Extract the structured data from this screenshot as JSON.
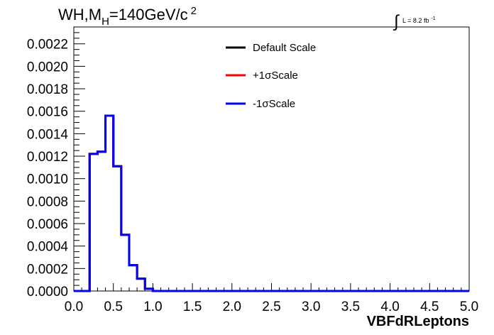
{
  "chart_data": {
    "type": "line",
    "step": true,
    "title_parts": {
      "pre": "WH,M",
      "sub": "H",
      "mid": "=140GeV/c",
      "sup": "2"
    },
    "lumi": {
      "integral": "∫",
      "text": "L = 8.2 fb",
      "sup": "-1"
    },
    "xlabel": "VBFdRLeptons",
    "ylabel": "",
    "xlim": [
      0.0,
      5.0
    ],
    "ylim": [
      0.0,
      0.00235
    ],
    "xticks": [
      "0.0",
      "0.5",
      "1.0",
      "1.5",
      "2.0",
      "2.5",
      "3.0",
      "3.5",
      "4.0",
      "4.5",
      "5.0"
    ],
    "yticks": [
      "0.0000",
      "0.0002",
      "0.0004",
      "0.0006",
      "0.0008",
      "0.0010",
      "0.0012",
      "0.0014",
      "0.0016",
      "0.0018",
      "0.0020",
      "0.0022"
    ],
    "grid": false,
    "legend_position": "top-center",
    "bin_edges": [
      0.0,
      0.1,
      0.2,
      0.3,
      0.4,
      0.5,
      0.6,
      0.7,
      0.8,
      0.9,
      1.0,
      1.1,
      1.2,
      1.3,
      1.4,
      1.5,
      1.6,
      1.7,
      1.8,
      1.9,
      2.0,
      2.1,
      2.2,
      2.3,
      2.4,
      2.5,
      2.6,
      2.7,
      2.8,
      2.9,
      3.0,
      3.1,
      3.2,
      3.3,
      3.4,
      3.5,
      3.6,
      3.7,
      3.8,
      3.9,
      4.0,
      4.1,
      4.2,
      4.3,
      4.4,
      4.5,
      4.6,
      4.7,
      4.8,
      4.9,
      5.0
    ],
    "series": [
      {
        "name": "Default Scale",
        "color": "#000000",
        "values": [
          0,
          0,
          0.00122,
          0.00124,
          0.00156,
          0.00111,
          0.0005,
          0.00023,
          0.00011,
          2e-05,
          0,
          0,
          0,
          0,
          0,
          0,
          0,
          0,
          0,
          0,
          0,
          0,
          0,
          0,
          0,
          0,
          0,
          0,
          0,
          0,
          0,
          0,
          0,
          0,
          0,
          0,
          0,
          0,
          0,
          0,
          0,
          0,
          0,
          0,
          0,
          0,
          0,
          0,
          0,
          0
        ]
      },
      {
        "name": "+1σScale",
        "color": "#ff0000",
        "values": [
          0,
          0,
          0.00122,
          0.00124,
          0.00156,
          0.00111,
          0.0005,
          0.00023,
          0.00011,
          2e-05,
          0,
          0,
          0,
          0,
          0,
          0,
          0,
          0,
          0,
          0,
          0,
          0,
          0,
          0,
          0,
          0,
          0,
          0,
          0,
          0,
          0,
          0,
          0,
          0,
          0,
          0,
          0,
          0,
          0,
          0,
          0,
          0,
          0,
          0,
          0,
          0,
          0,
          0,
          0,
          0
        ]
      },
      {
        "name": "-1σScale",
        "color": "#0000ff",
        "values": [
          0,
          0,
          0.00122,
          0.00124,
          0.00156,
          0.00111,
          0.0005,
          0.00023,
          0.00011,
          2e-05,
          0,
          0,
          0,
          0,
          0,
          0,
          0,
          0,
          0,
          0,
          0,
          0,
          0,
          0,
          0,
          0,
          0,
          0,
          0,
          0,
          0,
          0,
          0,
          0,
          0,
          0,
          0,
          0,
          0,
          0,
          0,
          0,
          0,
          0,
          0,
          0,
          0,
          0,
          0,
          0
        ]
      }
    ]
  }
}
